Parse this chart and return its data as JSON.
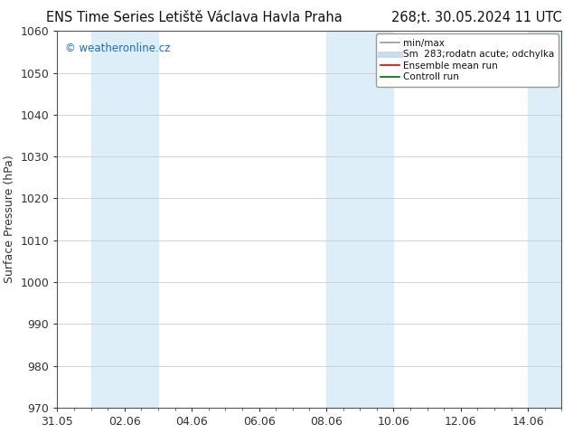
{
  "title_left": "ENS Time Series Letiště Václava Havla Praha",
  "title_right": "268;t. 30.05.2024 11 UTC",
  "ylabel": "Surface Pressure (hPa)",
  "ylim": [
    970,
    1060
  ],
  "yticks": [
    970,
    980,
    990,
    1000,
    1010,
    1020,
    1030,
    1040,
    1050,
    1060
  ],
  "xtick_labels": [
    "31.05",
    "02.06",
    "04.06",
    "06.06",
    "08.06",
    "10.06",
    "12.06",
    "14.06"
  ],
  "xtick_positions": [
    0,
    2,
    4,
    6,
    8,
    10,
    12,
    14
  ],
  "xlim": [
    0,
    15
  ],
  "shade_bands": [
    {
      "start": 1,
      "end": 3
    },
    {
      "start": 8,
      "end": 10
    },
    {
      "start": 14,
      "end": 15
    }
  ],
  "shade_color": "#ddeef8",
  "bg_color": "#ffffff",
  "plot_bg_color": "#ffffff",
  "watermark": "© weatheronline.cz",
  "watermark_color": "#1a6ec4",
  "legend_entries": [
    {
      "label": "min/max",
      "color": "#999999",
      "lw": 1.2
    },
    {
      "label": "Sm  283;rodatn acute; odchylka",
      "color": "#c8dced",
      "lw": 5
    },
    {
      "label": "Ensemble mean run",
      "color": "#dd0000",
      "lw": 1.2
    },
    {
      "label": "Controll run",
      "color": "#006600",
      "lw": 1.2
    }
  ],
  "grid_color": "#cccccc",
  "spine_color": "#555555",
  "tick_color": "#333333",
  "title_color": "#111111",
  "font_size": 9,
  "title_font_size": 10.5
}
